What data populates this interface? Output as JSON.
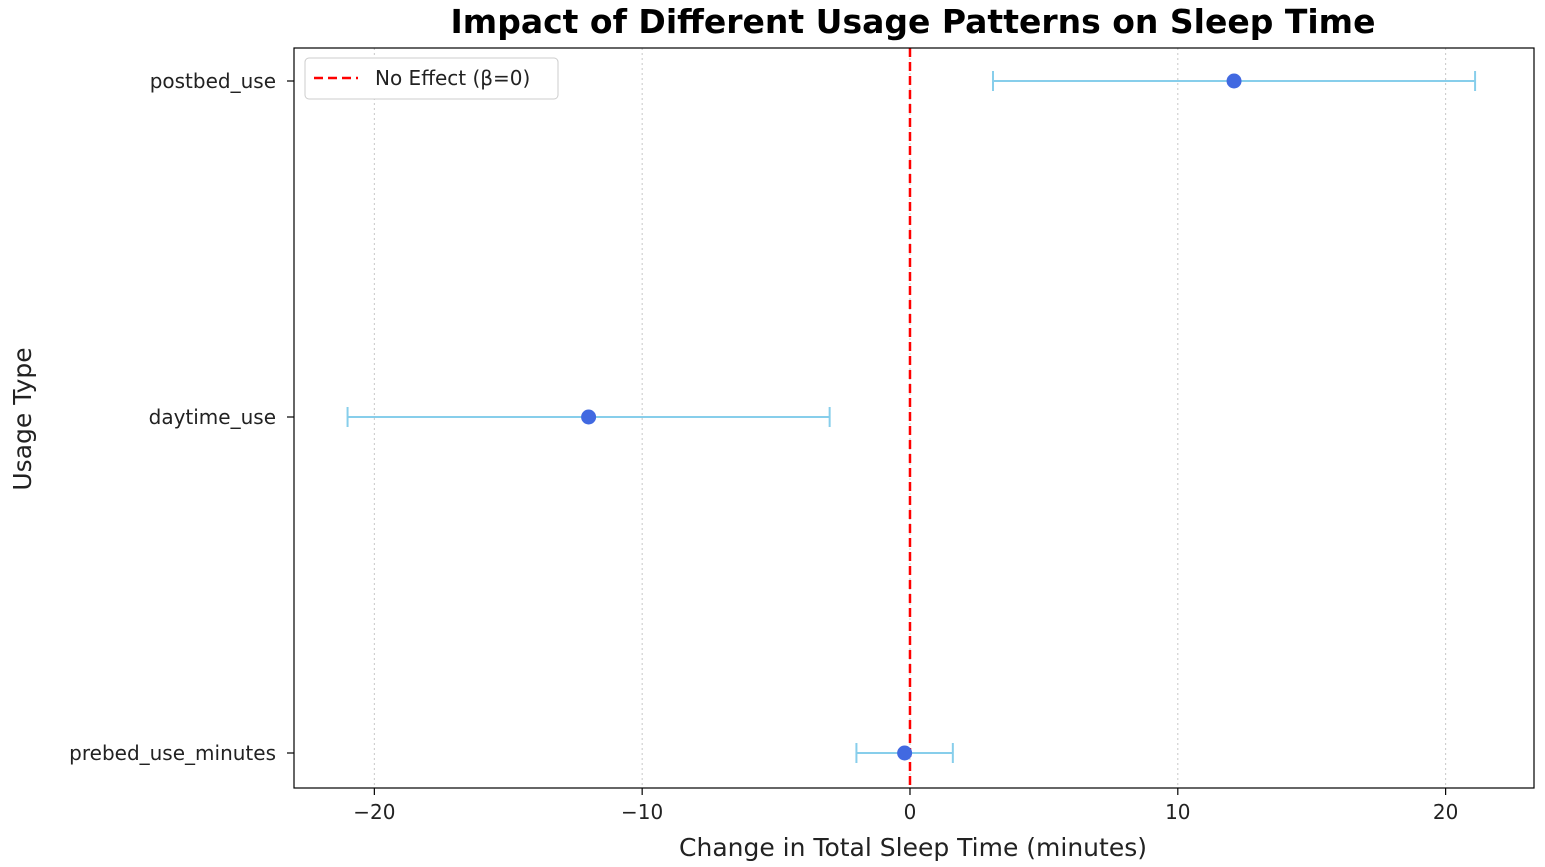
{
  "chart_data": {
    "type": "errorbar",
    "title": "Impact of Different Usage Patterns on Sleep Time",
    "xlabel": "Change in Total Sleep Time (minutes)",
    "ylabel": "Usage Type",
    "xlim": [
      -23,
      23.3
    ],
    "xticks": [
      -20,
      -10,
      0,
      10,
      20
    ],
    "xtick_labels": [
      "−20",
      "−10",
      "0",
      "10",
      "20"
    ],
    "grid": "x dotted",
    "categories": [
      "prebed_use_minutes",
      "daytime_use",
      "postbed_use"
    ],
    "estimates": [
      -0.2,
      -12.0,
      12.1
    ],
    "ci_low": [
      -2.0,
      -21.0,
      3.1
    ],
    "ci_high": [
      1.6,
      -3.0,
      21.1
    ],
    "reference_line": {
      "x": 0,
      "label": "No Effect (β=0)",
      "color": "#ff0000",
      "style": "dashed"
    },
    "point_color": "#4169e1",
    "errorbar_color": "#87ceeb",
    "legend": {
      "placement": "upper-left",
      "entries": [
        "No Effect (β=0)"
      ]
    }
  }
}
